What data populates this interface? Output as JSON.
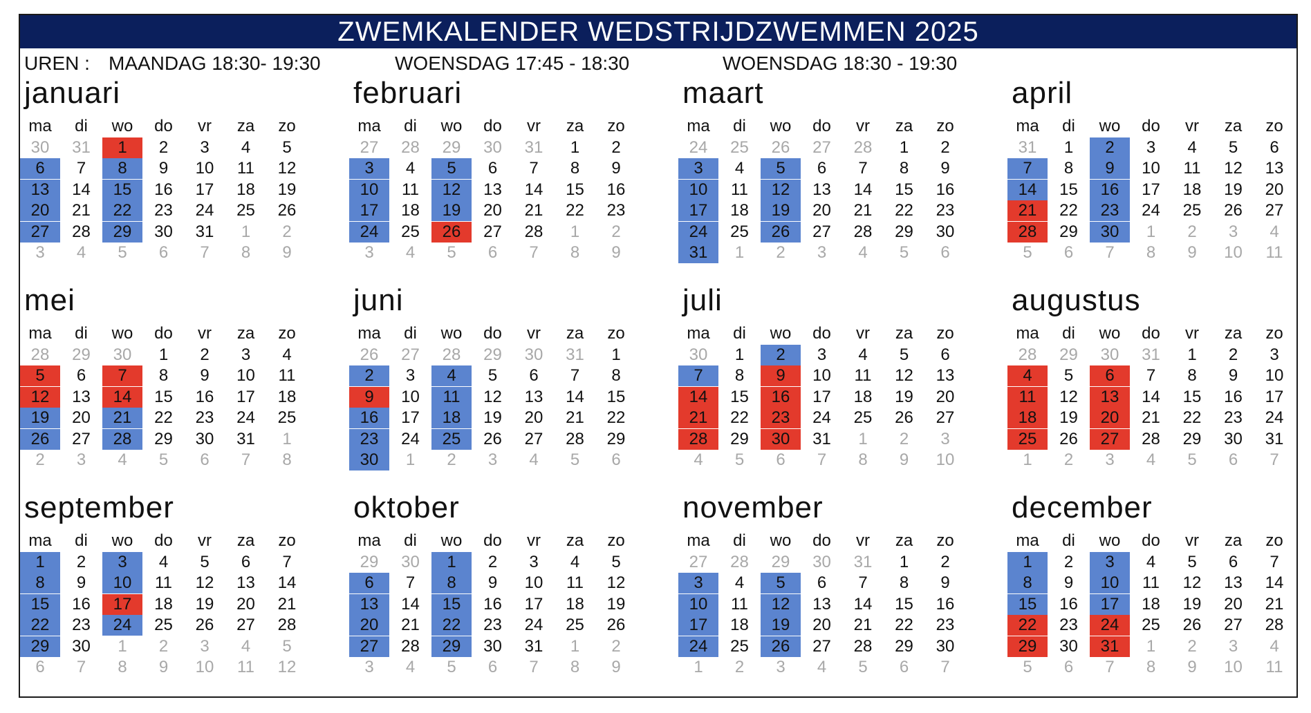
{
  "title": "ZWEMKALENDER WEDSTRIJDZWEMMEN 2025",
  "hours": {
    "label": "UREN :",
    "slot1": "MAANDAG 18:30- 19:30",
    "slot2": "WOENSDAG 17:45 - 18:30",
    "slot3": "WOENSDAG 18:30 - 19:30"
  },
  "weekdays": [
    "ma",
    "di",
    "wo",
    "do",
    "vr",
    "za",
    "zo"
  ],
  "colors": {
    "header": "#0b1f5c",
    "blue": "#5b84cf",
    "red": "#e33a2c",
    "other_month": "#a8a8a8"
  },
  "months": [
    {
      "name": "januari",
      "first": 30,
      "prev_len": 31,
      "start_col": 2,
      "days": 31,
      "blue": [
        6,
        8,
        13,
        15,
        20,
        22,
        27,
        29
      ],
      "red": [
        1
      ]
    },
    {
      "name": "februari",
      "first": 27,
      "prev_len": 31,
      "start_col": 5,
      "days": 28,
      "blue": [
        3,
        5,
        10,
        12,
        17,
        19,
        24
      ],
      "red": [
        26
      ]
    },
    {
      "name": "maart",
      "first": 24,
      "prev_len": 28,
      "start_col": 5,
      "days": 31,
      "blue": [
        3,
        5,
        10,
        12,
        17,
        19,
        24,
        26,
        31
      ],
      "red": []
    },
    {
      "name": "april",
      "first": 31,
      "prev_len": 31,
      "start_col": 1,
      "days": 30,
      "blue": [
        2,
        7,
        9,
        14,
        16,
        23,
        30
      ],
      "red": [
        21,
        28
      ]
    },
    {
      "name": "mei",
      "first": 28,
      "prev_len": 30,
      "start_col": 3,
      "days": 31,
      "blue": [
        19,
        21,
        26,
        28
      ],
      "red": [
        5,
        7,
        12,
        14
      ]
    },
    {
      "name": "juni",
      "first": 26,
      "prev_len": 31,
      "start_col": 6,
      "days": 30,
      "blue": [
        2,
        4,
        11,
        16,
        18,
        23,
        25,
        30
      ],
      "red": [
        9
      ]
    },
    {
      "name": "juli",
      "first": 30,
      "prev_len": 30,
      "start_col": 1,
      "days": 31,
      "blue": [
        2,
        7
      ],
      "red": [
        9,
        14,
        16,
        21,
        23,
        28,
        30
      ]
    },
    {
      "name": "augustus",
      "first": 28,
      "prev_len": 31,
      "start_col": 4,
      "days": 31,
      "blue": [],
      "red": [
        4,
        6,
        11,
        13,
        18,
        20,
        25,
        27
      ]
    },
    {
      "name": "september",
      "first": 1,
      "prev_len": 31,
      "start_col": 0,
      "days": 30,
      "blue": [
        1,
        3,
        8,
        10,
        15,
        22,
        24,
        29
      ],
      "red": [
        17
      ]
    },
    {
      "name": "oktober",
      "first": 29,
      "prev_len": 30,
      "start_col": 2,
      "days": 31,
      "blue": [
        1,
        6,
        8,
        13,
        15,
        20,
        22,
        27,
        29
      ],
      "red": []
    },
    {
      "name": "november",
      "first": 27,
      "prev_len": 31,
      "start_col": 5,
      "days": 30,
      "blue": [
        3,
        5,
        10,
        12,
        17,
        19,
        24,
        26
      ],
      "red": []
    },
    {
      "name": "december",
      "first": 1,
      "prev_len": 30,
      "start_col": 0,
      "days": 31,
      "blue": [
        1,
        3,
        8,
        10,
        15,
        17
      ],
      "red": [
        22,
        24,
        29,
        31
      ]
    }
  ]
}
